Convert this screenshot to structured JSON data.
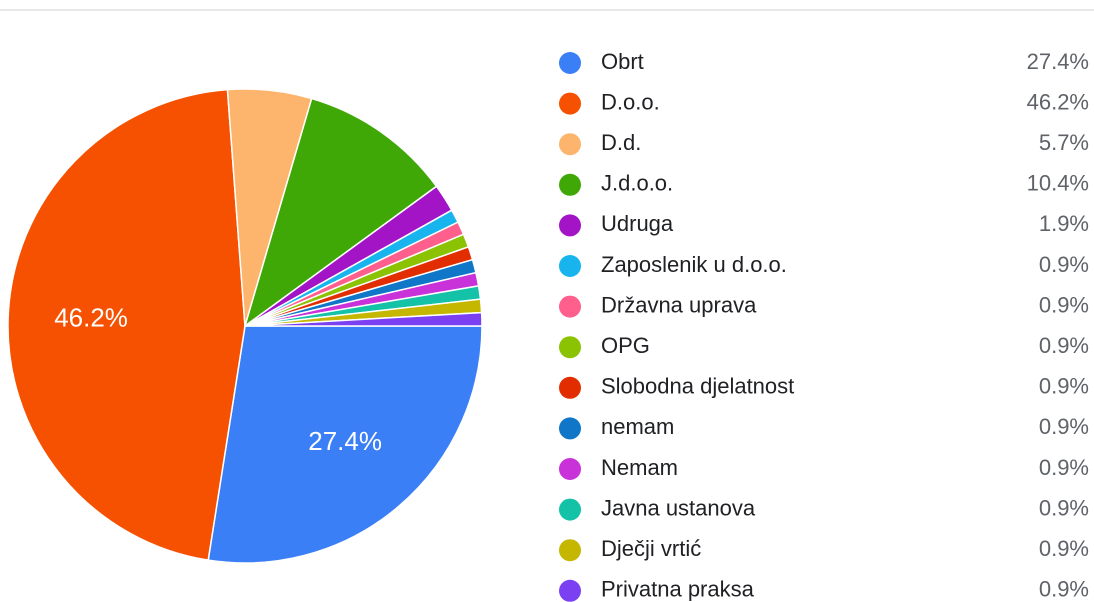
{
  "chart_data": {
    "type": "pie",
    "categories": [
      "Obrt",
      "D.o.o.",
      "D.d.",
      "J.d.o.o.",
      "Udruga",
      "Zaposlenik u d.o.o.",
      "Državna uprava",
      "OPG",
      "Slobodna djelatnost",
      "nemam",
      "Nemam",
      "Javna ustanova",
      "Dječji vrtić",
      "Privatna praksa"
    ],
    "values": [
      27.4,
      46.2,
      5.7,
      10.4,
      1.9,
      0.9,
      0.9,
      0.9,
      0.9,
      0.9,
      0.9,
      0.9,
      0.9,
      0.9
    ],
    "value_labels": [
      "27.4%",
      "46.2%",
      "5.7%",
      "10.4%",
      "1.9%",
      "0.9%",
      "0.9%",
      "0.9%",
      "0.9%",
      "0.9%",
      "0.9%",
      "0.9%",
      "0.9%",
      "0.9%"
    ],
    "colors": [
      "#3b7ff6",
      "#f55100",
      "#fdb46c",
      "#3fa806",
      "#a314c6",
      "#18b4ee",
      "#ff5f8d",
      "#8bc302",
      "#e22d00",
      "#0f76c8",
      "#c932d9",
      "#14c2a8",
      "#c5b600",
      "#7a40f2"
    ]
  }
}
